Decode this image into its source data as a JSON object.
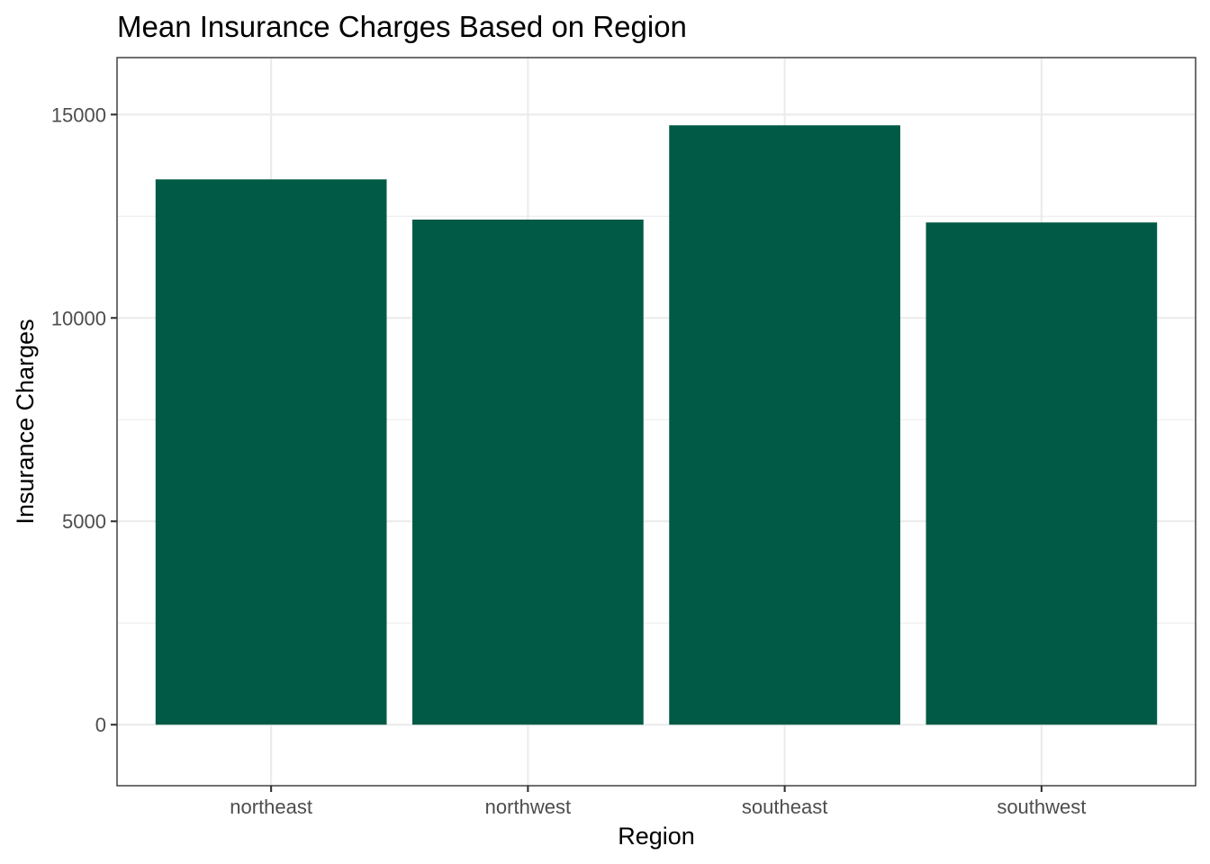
{
  "chart_data": {
    "type": "bar",
    "title": "Mean Insurance Charges Based on Region",
    "xlabel": "Region",
    "ylabel": "Insurance Charges",
    "categories": [
      "northeast",
      "northwest",
      "southeast",
      "southwest"
    ],
    "values": [
      13406.38,
      12417.58,
      14735.41,
      12346.94
    ],
    "ylim": [
      -1500,
      16400
    ],
    "yticks": [
      0,
      5000,
      10000,
      15000
    ],
    "yticks_minor": [
      2500,
      7500,
      12500
    ],
    "grid": true,
    "bar_color": "#005a46",
    "legend": "none"
  }
}
